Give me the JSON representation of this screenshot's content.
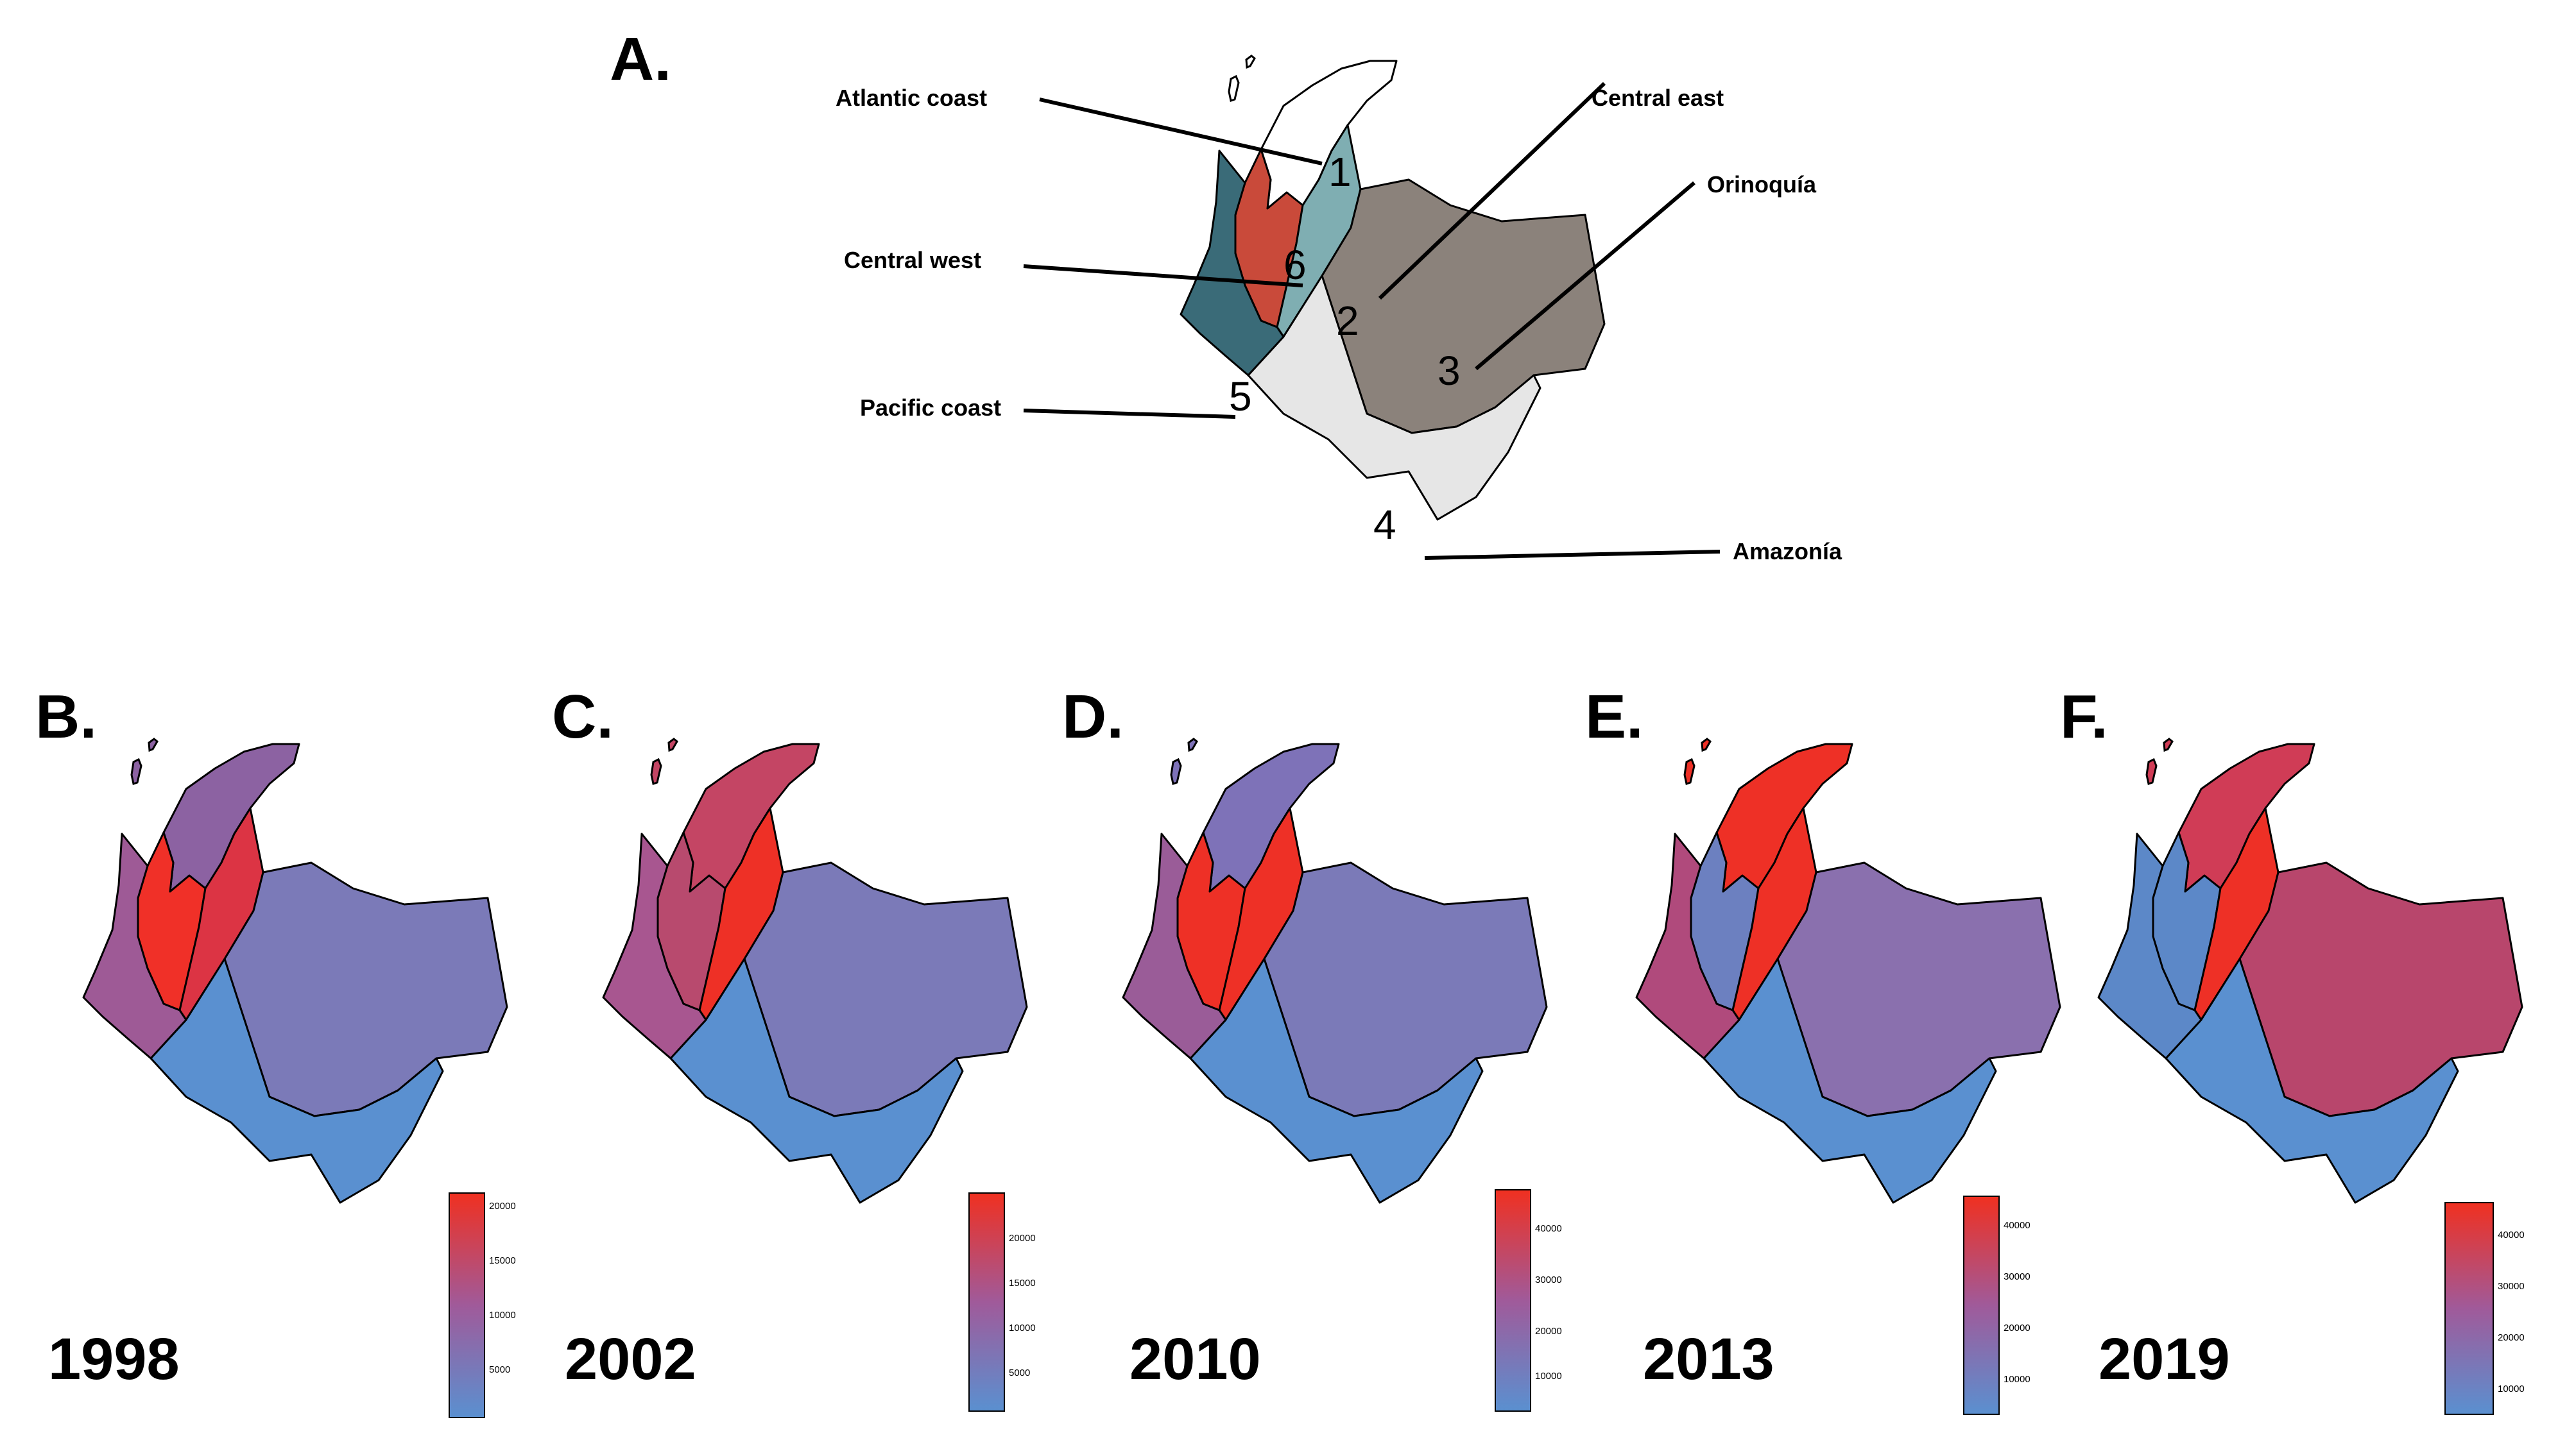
{
  "panel_a": {
    "label": "A.",
    "regions": [
      {
        "num": "1",
        "name": "Atlantic coast",
        "color": "#ffffff"
      },
      {
        "num": "2",
        "name": "Central east",
        "color": "#7faeb2"
      },
      {
        "num": "3",
        "name": "Orinoquía",
        "color": "#8b827b"
      },
      {
        "num": "4",
        "name": "Amazonía",
        "color": "#e6e6e6"
      },
      {
        "num": "5",
        "name": "Pacific coast",
        "color": "#3a6b78"
      },
      {
        "num": "6",
        "name": "Central west",
        "color": "#c94a3a"
      }
    ]
  },
  "maps": [
    {
      "label": "B.",
      "year": "1998",
      "ticks": [
        "20000",
        "15000",
        "10000",
        "5000"
      ],
      "colors": {
        "atlantic": "#8c62a2",
        "central_west": "#f03028",
        "central_east": "#dc3444",
        "orinoquia": "#7b7ab8",
        "amazonia": "#5a90d0",
        "pacific": "#9e5a96"
      }
    },
    {
      "label": "C.",
      "year": "2002",
      "ticks": [
        "20000",
        "15000",
        "10000",
        "5000"
      ],
      "colors": {
        "atlantic": "#c44564",
        "central_west": "#b84a6e",
        "central_east": "#ee3026",
        "orinoquia": "#7b7ab8",
        "amazonia": "#5a90d0",
        "pacific": "#a85690"
      }
    },
    {
      "label": "D.",
      "year": "2010",
      "ticks": [
        "40000",
        "30000",
        "20000",
        "10000"
      ],
      "colors": {
        "atlantic": "#7e72b8",
        "central_west": "#ee3026",
        "central_east": "#ee3026",
        "orinoquia": "#7b7ab8",
        "amazonia": "#5a90d0",
        "pacific": "#9a5c98"
      }
    },
    {
      "label": "E.",
      "year": "2013",
      "ticks": [
        "40000",
        "30000",
        "20000",
        "10000"
      ],
      "colors": {
        "atlantic": "#ee3026",
        "central_west": "#6c80c0",
        "central_east": "#ee3026",
        "orinoquia": "#8a70ae",
        "amazonia": "#5a90d0",
        "pacific": "#b04a7c"
      }
    },
    {
      "label": "F.",
      "year": "2019",
      "ticks": [
        "40000",
        "30000",
        "20000",
        "10000"
      ],
      "colors": {
        "atlantic": "#d03c56",
        "central_west": "#5c88c8",
        "central_east": "#ee3026",
        "orinoquia": "#b8466c",
        "amazonia": "#5a90d0",
        "pacific": "#5c88c8"
      }
    }
  ]
}
